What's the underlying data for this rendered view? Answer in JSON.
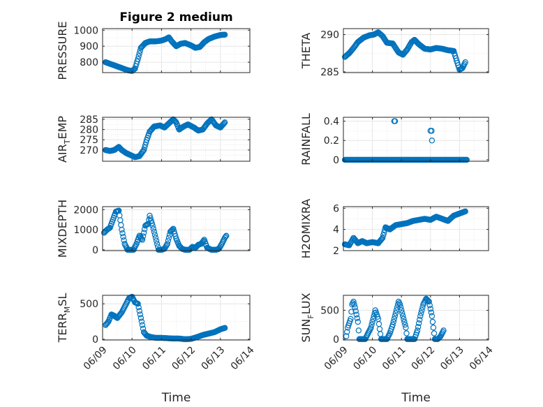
{
  "chart_data": [
    {
      "type": "scatter",
      "title": "Figure 2 medium",
      "ylabel": "PRESSURE",
      "xlabel": "",
      "ylim": [
        735,
        1010
      ],
      "yticks": [
        "800",
        "900",
        "1000"
      ],
      "ytick_values": [
        800,
        900,
        1000
      ],
      "x_ticks_shown": false,
      "grid": true,
      "marker": "open-circle",
      "color": "#0072BD",
      "anchors": [
        [
          9.1,
          800
        ],
        [
          9.25,
          790
        ],
        [
          9.4,
          780
        ],
        [
          9.55,
          770
        ],
        [
          9.7,
          760
        ],
        [
          9.85,
          750
        ],
        [
          10.0,
          745
        ],
        [
          10.1,
          760
        ],
        [
          10.2,
          820
        ],
        [
          10.3,
          890
        ],
        [
          10.45,
          920
        ],
        [
          10.6,
          930
        ],
        [
          10.8,
          930
        ],
        [
          11.0,
          935
        ],
        [
          11.15,
          945
        ],
        [
          11.25,
          955
        ],
        [
          11.35,
          930
        ],
        [
          11.5,
          900
        ],
        [
          11.65,
          915
        ],
        [
          11.8,
          920
        ],
        [
          12.0,
          905
        ],
        [
          12.15,
          890
        ],
        [
          12.3,
          895
        ],
        [
          12.45,
          925
        ],
        [
          12.6,
          945
        ],
        [
          12.8,
          960
        ],
        [
          13.0,
          970
        ],
        [
          13.15,
          972
        ]
      ]
    },
    {
      "type": "scatter",
      "title": "",
      "ylabel": "THETA",
      "xlabel": "",
      "ylim": [
        284.9,
        290.8
      ],
      "yticks": [
        "285",
        "290"
      ],
      "ytick_values": [
        285,
        290
      ],
      "x_ticks_shown": false,
      "grid": true,
      "marker": "open-circle",
      "color": "#0072BD",
      "anchors": [
        [
          9.05,
          287.0
        ],
        [
          9.2,
          287.5
        ],
        [
          9.35,
          288.2
        ],
        [
          9.5,
          289.0
        ],
        [
          9.7,
          289.6
        ],
        [
          9.9,
          289.9
        ],
        [
          10.05,
          290.0
        ],
        [
          10.2,
          290.3
        ],
        [
          10.35,
          289.8
        ],
        [
          10.5,
          288.9
        ],
        [
          10.7,
          288.8
        ],
        [
          10.9,
          287.6
        ],
        [
          11.05,
          287.3
        ],
        [
          11.2,
          288.0
        ],
        [
          11.35,
          289.0
        ],
        [
          11.45,
          289.3
        ],
        [
          11.6,
          288.7
        ],
        [
          11.8,
          288.1
        ],
        [
          12.0,
          288.0
        ],
        [
          12.2,
          288.2
        ],
        [
          12.4,
          288.1
        ],
        [
          12.6,
          287.9
        ],
        [
          12.8,
          287.8
        ],
        [
          12.9,
          286.5
        ],
        [
          13.0,
          285.3
        ],
        [
          13.1,
          285.5
        ],
        [
          13.2,
          286.3
        ]
      ]
    },
    {
      "type": "scatter",
      "title": "",
      "ylabel": "AIR_TEMP",
      "ylabel_display": [
        "AIR",
        "T",
        "EMP"
      ],
      "xlabel": "",
      "ylim": [
        264.5,
        286
      ],
      "yticks": [
        "270",
        "275",
        "280",
        "285"
      ],
      "ytick_values": [
        270,
        275,
        280,
        285
      ],
      "x_ticks_shown": false,
      "grid": true,
      "marker": "open-circle",
      "color": "#0072BD",
      "anchors": [
        [
          9.1,
          270.0
        ],
        [
          9.25,
          269.5
        ],
        [
          9.4,
          270.0
        ],
        [
          9.55,
          271.5
        ],
        [
          9.65,
          270.0
        ],
        [
          9.8,
          268.5
        ],
        [
          9.95,
          267.5
        ],
        [
          10.1,
          266.5
        ],
        [
          10.25,
          267.0
        ],
        [
          10.4,
          270.0
        ],
        [
          10.5,
          275.0
        ],
        [
          10.6,
          279.0
        ],
        [
          10.75,
          281.5
        ],
        [
          10.95,
          282.0
        ],
        [
          11.1,
          281.0
        ],
        [
          11.25,
          283.0
        ],
        [
          11.4,
          285.0
        ],
        [
          11.5,
          283.5
        ],
        [
          11.6,
          280.0
        ],
        [
          11.75,
          281.5
        ],
        [
          11.9,
          282.5
        ],
        [
          12.1,
          281.0
        ],
        [
          12.25,
          279.5
        ],
        [
          12.4,
          280.0
        ],
        [
          12.55,
          283.0
        ],
        [
          12.7,
          285.0
        ],
        [
          12.85,
          282.0
        ],
        [
          13.0,
          281.0
        ],
        [
          13.15,
          283.5
        ]
      ]
    },
    {
      "type": "scatter",
      "title": "",
      "ylabel": "RAINFALL",
      "xlabel": "",
      "ylim": [
        -0.015,
        0.44
      ],
      "yticks": [
        "0",
        "0.2",
        "0.4"
      ],
      "ytick_values": [
        0,
        0.2,
        0.4
      ],
      "x_ticks_shown": false,
      "grid": true,
      "marker": "open-circle",
      "color": "#0072BD",
      "baseline": {
        "x_start": 9.05,
        "x_end": 13.25,
        "y": 0
      },
      "spikes": [
        [
          10.75,
          0.4
        ],
        [
          10.78,
          0.4
        ],
        [
          12.0,
          0.3
        ],
        [
          12.04,
          0.3
        ],
        [
          12.05,
          0.2
        ]
      ]
    },
    {
      "type": "scatter",
      "title": "",
      "ylabel": "MIXDEPTH",
      "xlabel": "",
      "ylim": [
        -40,
        2150
      ],
      "yticks": [
        "0",
        "1000",
        "2000"
      ],
      "ytick_values": [
        0,
        1000,
        2000
      ],
      "x_ticks_shown": false,
      "grid": true,
      "marker": "open-circle",
      "color": "#0072BD",
      "anchors": [
        [
          9.05,
          850
        ],
        [
          9.15,
          1000
        ],
        [
          9.25,
          1100
        ],
        [
          9.35,
          1500
        ],
        [
          9.45,
          1900
        ],
        [
          9.55,
          1950
        ],
        [
          9.65,
          1000
        ],
        [
          9.75,
          300
        ],
        [
          9.85,
          0
        ],
        [
          9.95,
          0
        ],
        [
          10.05,
          0
        ],
        [
          10.15,
          300
        ],
        [
          10.25,
          700
        ],
        [
          10.35,
          500
        ],
        [
          10.45,
          1200
        ],
        [
          10.55,
          1300
        ],
        [
          10.6,
          1700
        ],
        [
          10.7,
          1200
        ],
        [
          10.8,
          600
        ],
        [
          10.9,
          0
        ],
        [
          11.0,
          0
        ],
        [
          11.1,
          50
        ],
        [
          11.2,
          300
        ],
        [
          11.3,
          900
        ],
        [
          11.4,
          1050
        ],
        [
          11.5,
          550
        ],
        [
          11.6,
          200
        ],
        [
          11.7,
          50
        ],
        [
          11.8,
          0
        ],
        [
          11.95,
          0
        ],
        [
          12.05,
          150
        ],
        [
          12.15,
          100
        ],
        [
          12.25,
          250
        ],
        [
          12.35,
          300
        ],
        [
          12.45,
          500
        ],
        [
          12.55,
          100
        ],
        [
          12.7,
          0
        ],
        [
          12.85,
          0
        ],
        [
          12.95,
          50
        ],
        [
          13.05,
          300
        ],
        [
          13.15,
          600
        ],
        [
          13.2,
          700
        ]
      ]
    },
    {
      "type": "scatter",
      "title": "",
      "ylabel": "H2OMIXRA",
      "xlabel": "",
      "ylim": [
        2,
        6.15
      ],
      "yticks": [
        "2",
        "4",
        "6"
      ],
      "ytick_values": [
        2,
        4,
        6
      ],
      "x_ticks_shown": false,
      "grid": true,
      "marker": "open-circle",
      "color": "#0072BD",
      "anchors": [
        [
          9.05,
          2.6
        ],
        [
          9.2,
          2.5
        ],
        [
          9.35,
          3.2
        ],
        [
          9.5,
          2.7
        ],
        [
          9.65,
          2.9
        ],
        [
          9.8,
          2.7
        ],
        [
          10.0,
          2.8
        ],
        [
          10.2,
          2.7
        ],
        [
          10.35,
          3.2
        ],
        [
          10.45,
          4.2
        ],
        [
          10.6,
          4.0
        ],
        [
          10.8,
          4.4
        ],
        [
          11.0,
          4.5
        ],
        [
          11.2,
          4.6
        ],
        [
          11.4,
          4.8
        ],
        [
          11.6,
          4.9
        ],
        [
          11.8,
          5.0
        ],
        [
          12.0,
          4.9
        ],
        [
          12.2,
          5.2
        ],
        [
          12.4,
          5.0
        ],
        [
          12.6,
          4.8
        ],
        [
          12.8,
          5.3
        ],
        [
          13.0,
          5.5
        ],
        [
          13.2,
          5.7
        ]
      ]
    },
    {
      "type": "scatter",
      "title": "",
      "ylabel": "TERR_MSL",
      "ylabel_display": [
        "TERR",
        "M",
        "SL"
      ],
      "xlabel": "Time",
      "ylim": [
        -10,
        620
      ],
      "yticks": [
        "0",
        "500"
      ],
      "ytick_values": [
        0,
        500
      ],
      "x_ticks_shown": true,
      "grid": true,
      "marker": "open-circle",
      "color": "#0072BD",
      "anchors": [
        [
          9.1,
          200
        ],
        [
          9.2,
          250
        ],
        [
          9.3,
          350
        ],
        [
          9.4,
          330
        ],
        [
          9.5,
          300
        ],
        [
          9.65,
          380
        ],
        [
          9.8,
          500
        ],
        [
          9.9,
          580
        ],
        [
          10.0,
          600
        ],
        [
          10.1,
          520
        ],
        [
          10.2,
          500
        ],
        [
          10.3,
          300
        ],
        [
          10.4,
          100
        ],
        [
          10.5,
          50
        ],
        [
          10.65,
          30
        ],
        [
          10.8,
          20
        ],
        [
          11.0,
          20
        ],
        [
          11.2,
          15
        ],
        [
          11.4,
          10
        ],
        [
          11.6,
          10
        ],
        [
          11.8,
          0
        ],
        [
          12.0,
          5
        ],
        [
          12.2,
          30
        ],
        [
          12.4,
          60
        ],
        [
          12.6,
          80
        ],
        [
          12.8,
          100
        ],
        [
          13.0,
          140
        ],
        [
          13.15,
          160
        ]
      ]
    },
    {
      "type": "scatter",
      "title": "",
      "ylabel": "SUN_FLUX",
      "ylabel_display": [
        "SUN",
        "F",
        "LUX"
      ],
      "xlabel": "Time",
      "ylim": [
        -15,
        760
      ],
      "yticks": [
        "0",
        "500"
      ],
      "ytick_values": [
        0,
        500
      ],
      "x_ticks_shown": true,
      "grid": true,
      "marker": "open-circle",
      "color": "#0072BD",
      "anchors": [
        [
          9.1,
          50
        ],
        [
          9.15,
          200
        ],
        [
          9.25,
          350
        ],
        [
          9.3,
          600
        ],
        [
          9.35,
          650
        ],
        [
          9.4,
          550
        ],
        [
          9.5,
          300
        ],
        [
          9.55,
          0
        ],
        [
          9.65,
          0
        ],
        [
          9.75,
          0
        ],
        [
          9.85,
          100
        ],
        [
          9.95,
          200
        ],
        [
          10.05,
          400
        ],
        [
          10.1,
          500
        ],
        [
          10.2,
          350
        ],
        [
          10.3,
          0
        ],
        [
          10.4,
          0
        ],
        [
          10.5,
          0
        ],
        [
          10.6,
          100
        ],
        [
          10.7,
          250
        ],
        [
          10.8,
          450
        ],
        [
          10.9,
          650
        ],
        [
          10.95,
          600
        ],
        [
          11.05,
          400
        ],
        [
          11.15,
          200
        ],
        [
          11.2,
          0
        ],
        [
          11.3,
          0
        ],
        [
          11.45,
          0
        ],
        [
          11.55,
          150
        ],
        [
          11.65,
          400
        ],
        [
          11.75,
          600
        ],
        [
          11.85,
          700
        ],
        [
          11.95,
          650
        ],
        [
          12.05,
          400
        ],
        [
          12.1,
          200
        ],
        [
          12.15,
          0
        ],
        [
          12.25,
          0
        ],
        [
          12.35,
          50
        ],
        [
          12.45,
          150
        ]
      ]
    }
  ],
  "shared_x_axis": {
    "xlim": [
      9.0,
      14.0
    ],
    "ticks": [
      "06/09",
      "06/10",
      "06/11",
      "06/12",
      "06/13",
      "06/14"
    ],
    "tick_values": [
      9,
      10,
      11,
      12,
      13,
      14
    ]
  }
}
